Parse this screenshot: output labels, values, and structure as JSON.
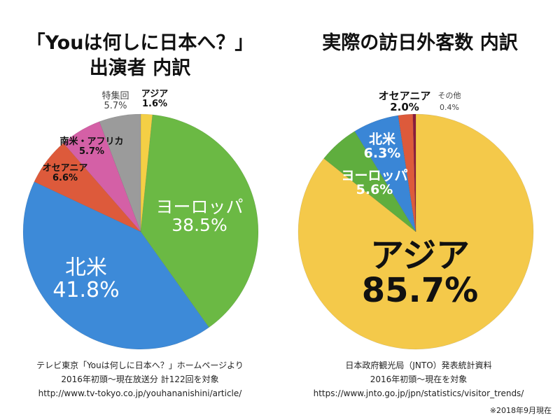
{
  "chart_data": [
    {
      "type": "pie",
      "title": "「Youは何しに日本へ？」\n出演者 内訳",
      "title_lines": [
        "「Youは何しに日本へ？」",
        "出演者 内訳"
      ],
      "start": "12 o'clock, clockwise",
      "slices": [
        {
          "label": "アジア",
          "value": 1.6,
          "value_label": "1.6%",
          "color": "#f4cf45"
        },
        {
          "label": "ヨーロッパ",
          "value": 38.5,
          "value_label": "38.5%",
          "color": "#6bb944"
        },
        {
          "label": "北米",
          "value": 41.8,
          "value_label": "41.8%",
          "color": "#3d8ad8"
        },
        {
          "label": "オセアニア",
          "value": 6.6,
          "value_label": "6.6%",
          "color": "#dd5a3b"
        },
        {
          "label": "南米・アフリカ",
          "value": 5.7,
          "value_label": "5.7%",
          "color": "#d460a6"
        },
        {
          "label": "特集回",
          "value": 5.7,
          "value_label": "5.7%",
          "color": "#9b9b9b"
        }
      ],
      "source": [
        "テレビ東京「Youは何しに日本へ？」ホームページより",
        "2016年初頭〜現在放送分 計122回を対象",
        "http://www.tv-tokyo.co.jp/youhananishini/article/"
      ]
    },
    {
      "type": "pie",
      "title": "実際の訪日外客数 内訳",
      "start": "12 o'clock, clockwise",
      "slices": [
        {
          "label": "アジア",
          "value": 85.7,
          "value_label": "85.7%",
          "color": "#f4c94a"
        },
        {
          "label": "ヨーロッパ",
          "value": 5.6,
          "value_label": "5.6%",
          "color": "#5fae3e"
        },
        {
          "label": "北米",
          "value": 6.3,
          "value_label": "6.3%",
          "color": "#3a86d6"
        },
        {
          "label": "オセアニア",
          "value": 2.0,
          "value_label": "2.0%",
          "color": "#dd5a3b"
        },
        {
          "label": "その他",
          "value": 0.4,
          "value_label": "0.4%",
          "color": "#8a1c3c"
        }
      ],
      "source": [
        "日本政府観光局（JNTO）発表統計資料",
        "2016年初頭〜現在を対象",
        "https://www.jnto.go.jp/jpn/statistics/visitor_trends/"
      ]
    }
  ],
  "footnote": "※2018年9月現在"
}
